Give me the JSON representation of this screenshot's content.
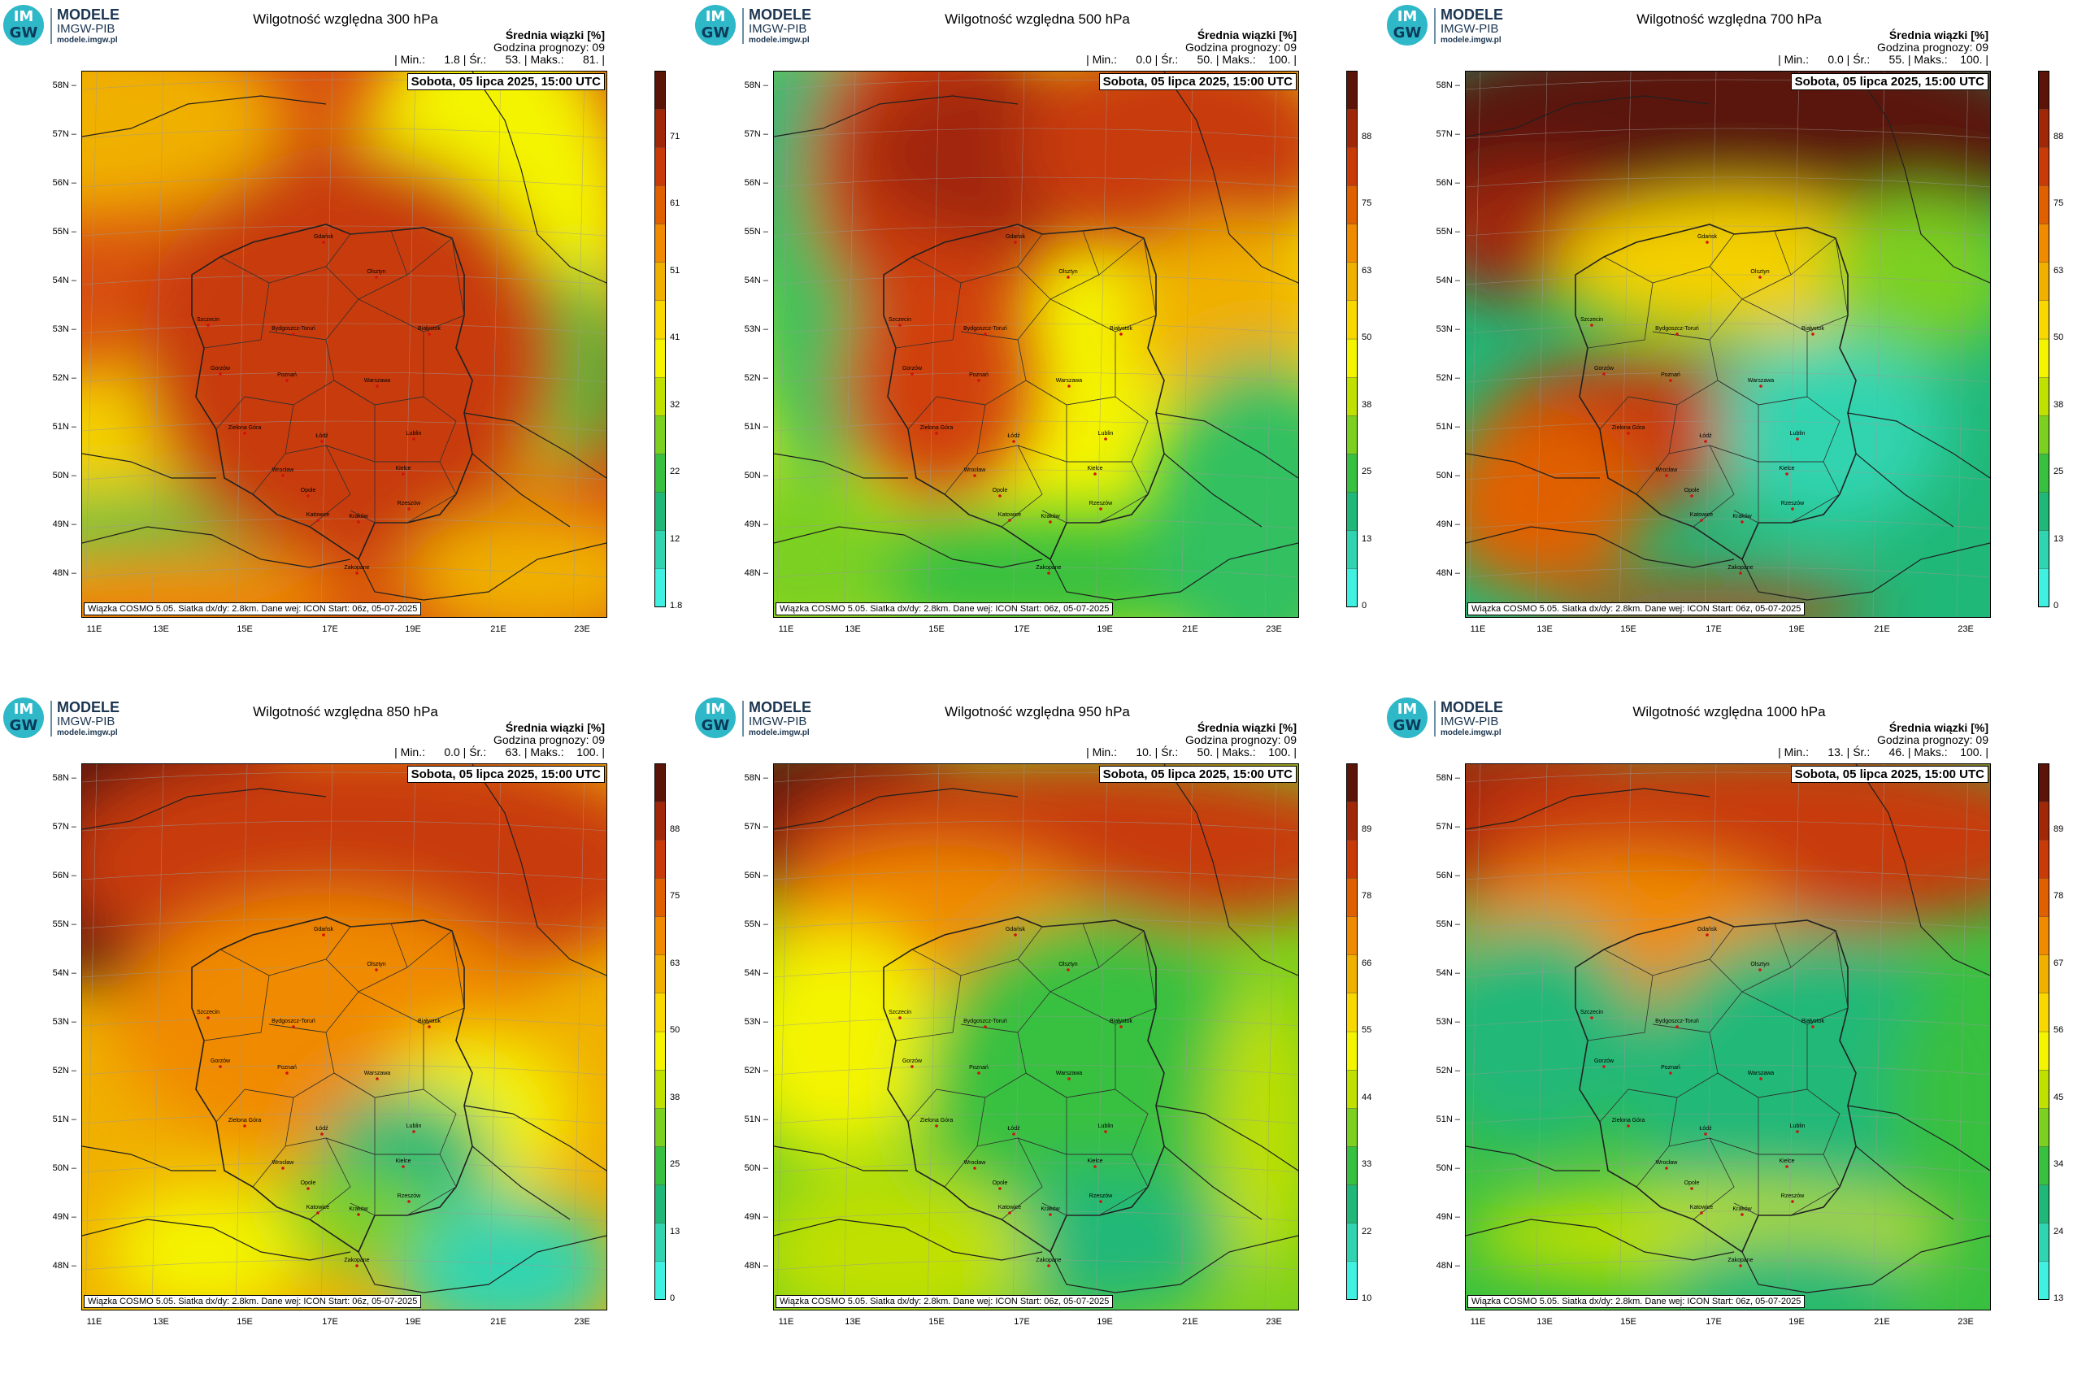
{
  "logo": {
    "circle_top": "IM",
    "circle_bottom": "GW",
    "name": "MODELE",
    "org": "IMGW-PIB",
    "url": "modele.imgw.pl"
  },
  "common": {
    "legend_title": "Średnia wiązki [%]",
    "forecast_hour": "Godzina prognozy: 09",
    "date": "Sobota, 05 lipca 2025, 15:00 UTC",
    "footer": "Wiązka COSMO 5.05. Siatka dx/dy: 2.8km. Dane wej: ICON Start: 06z, 05-07-2025",
    "lat_labels": [
      "58N",
      "57N",
      "56N",
      "55N",
      "54N",
      "53N",
      "52N",
      "51N",
      "50N",
      "49N",
      "48N"
    ],
    "lon_labels": [
      "11E",
      "13E",
      "15E",
      "17E",
      "19E",
      "21E",
      "23E"
    ],
    "colors": {
      "dry": "#40f0e0",
      "mid_green": "#20b878",
      "yellow": "#f4f400",
      "orange": "#f08a00",
      "red": "#c83a08",
      "dark": "#5a1508"
    }
  },
  "panels": [
    {
      "title": "Wilgotność względna 300 hPa",
      "stats": "| Min.:      1.8 | Śr.:      53. | Maks.:      81. |",
      "ticks": [
        "1.8",
        "12",
        "22",
        "32",
        "41",
        "51",
        "61",
        "71"
      ],
      "mean": 53
    },
    {
      "title": "Wilgotność względna 500 hPa",
      "stats": "| Min.:      0.0 | Śr.:      50. | Maks.:    100. |",
      "ticks": [
        "0",
        "13",
        "25",
        "38",
        "50",
        "63",
        "75",
        "88"
      ],
      "mean": 50
    },
    {
      "title": "Wilgotność względna 700 hPa",
      "stats": "| Min.:      0.0 | Śr.:      55. | Maks.:    100. |",
      "ticks": [
        "0",
        "13",
        "25",
        "38",
        "50",
        "63",
        "75",
        "88"
      ],
      "mean": 55
    },
    {
      "title": "Wilgotność względna 850 hPa",
      "stats": "| Min.:      0.0 | Śr.:      63. | Maks.:    100. |",
      "ticks": [
        "0",
        "13",
        "25",
        "38",
        "50",
        "63",
        "75",
        "88"
      ],
      "mean": 63
    },
    {
      "title": "Wilgotność względna 950 hPa",
      "stats": "| Min.:      10. | Śr.:      50. | Maks.:    100. |",
      "ticks": [
        "10",
        "22",
        "33",
        "44",
        "55",
        "66",
        "78",
        "89"
      ],
      "mean": 50
    },
    {
      "title": "Wilgotność względna 1000 hPa",
      "stats": "| Min.:      13. | Śr.:      46. | Maks.:    100. |",
      "ticks": [
        "13",
        "24",
        "34",
        "45",
        "56",
        "67",
        "78",
        "89"
      ],
      "mean": 46
    }
  ],
  "cities": [
    "Gdańsk",
    "Olsztyn",
    "Szczecin",
    "Bydgoszcz-Toruń",
    "Białystok",
    "Gorzów",
    "Poznań",
    "Warszawa",
    "Zielona Góra",
    "Łódź",
    "Lublin",
    "Wrocław",
    "Kielce",
    "Opole",
    "Katowice",
    "Kraków",
    "Rzeszów",
    "Zakopane"
  ]
}
